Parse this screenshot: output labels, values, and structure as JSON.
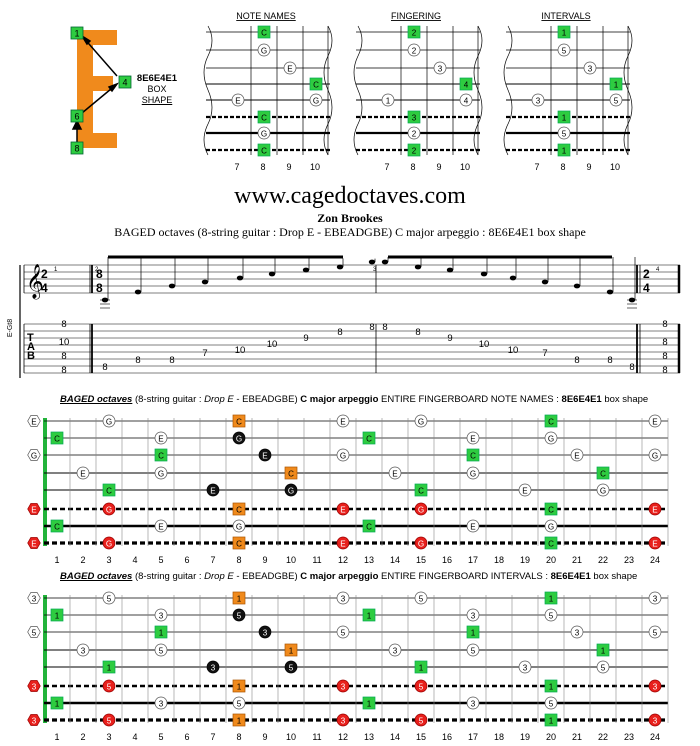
{
  "logo": {
    "letter": "E",
    "shape_code": "8E6E4E1",
    "label_line1": "BOX",
    "label_line2": "SHAPE",
    "markers": [
      "1",
      "4",
      "6",
      "8"
    ]
  },
  "mini_diagrams": [
    {
      "title": "NOTE NAMES",
      "frets": [
        "7",
        "8",
        "9",
        "10"
      ],
      "dots": [
        {
          "s": 1,
          "f": 8,
          "t": "C",
          "k": "g"
        },
        {
          "s": 2,
          "f": 8,
          "t": "G",
          "k": "w"
        },
        {
          "s": 3,
          "f": 9,
          "t": "E",
          "k": "w"
        },
        {
          "s": 4,
          "f": 10,
          "t": "C",
          "k": "g"
        },
        {
          "s": 5,
          "f": 7,
          "t": "E",
          "k": "w"
        },
        {
          "s": 5,
          "f": 10,
          "t": "G",
          "k": "w"
        },
        {
          "s": 6,
          "f": 8,
          "t": "C",
          "k": "g"
        },
        {
          "s": 7,
          "f": 8,
          "t": "G",
          "k": "w"
        },
        {
          "s": 8,
          "f": 8,
          "t": "C",
          "k": "g"
        }
      ]
    },
    {
      "title": "FINGERING",
      "frets": [
        "7",
        "8",
        "9",
        "10"
      ],
      "dots": [
        {
          "s": 1,
          "f": 8,
          "t": "2",
          "k": "g"
        },
        {
          "s": 2,
          "f": 8,
          "t": "2",
          "k": "w"
        },
        {
          "s": 3,
          "f": 9,
          "t": "3",
          "k": "w"
        },
        {
          "s": 4,
          "f": 10,
          "t": "4",
          "k": "g"
        },
        {
          "s": 5,
          "f": 7,
          "t": "1",
          "k": "w"
        },
        {
          "s": 5,
          "f": 10,
          "t": "4",
          "k": "w"
        },
        {
          "s": 6,
          "f": 8,
          "t": "3",
          "k": "g"
        },
        {
          "s": 7,
          "f": 8,
          "t": "2",
          "k": "w"
        },
        {
          "s": 8,
          "f": 8,
          "t": "2",
          "k": "g"
        }
      ]
    },
    {
      "title": "INTERVALS",
      "frets": [
        "7",
        "8",
        "9",
        "10"
      ],
      "dots": [
        {
          "s": 1,
          "f": 8,
          "t": "1",
          "k": "g"
        },
        {
          "s": 2,
          "f": 8,
          "t": "5",
          "k": "w"
        },
        {
          "s": 3,
          "f": 9,
          "t": "3",
          "k": "w"
        },
        {
          "s": 4,
          "f": 10,
          "t": "1",
          "k": "g"
        },
        {
          "s": 5,
          "f": 7,
          "t": "3",
          "k": "w"
        },
        {
          "s": 5,
          "f": 10,
          "t": "5",
          "k": "w"
        },
        {
          "s": 6,
          "f": 8,
          "t": "1",
          "k": "g"
        },
        {
          "s": 7,
          "f": 8,
          "t": "5",
          "k": "w"
        },
        {
          "s": 8,
          "f": 8,
          "t": "1",
          "k": "g"
        }
      ]
    }
  ],
  "header": {
    "site": "www.cagedoctaves.com",
    "author": "Zon Brookes",
    "subtitle": "BAGED octaves (8-string guitar : Drop E - EBEADGBE) C major arpeggio : 8E6E4E1 box shape"
  },
  "score": {
    "instrument_label": "E-Gt8",
    "tab_letters": [
      "T",
      "A",
      "B"
    ],
    "time_sig_start": [
      "2",
      "4"
    ],
    "time_sig_main": [
      "8",
      "8"
    ],
    "time_sig_end": [
      "2",
      "4"
    ],
    "measure_numbers": [
      "1",
      "2",
      "3",
      "4"
    ],
    "chord_left": [
      "8",
      "10",
      "8",
      "8"
    ],
    "chord_right": [
      "8",
      "8",
      "8",
      "8"
    ],
    "bar2_notes": [
      {
        "s": 8,
        "t": "8"
      },
      {
        "s": 7,
        "t": "8"
      },
      {
        "s": 6,
        "t": "8"
      },
      {
        "s": 5,
        "t": "7"
      },
      {
        "s": 5,
        "t": "10"
      },
      {
        "s": 4,
        "t": "10"
      },
      {
        "s": 3,
        "t": "9"
      },
      {
        "s": 2,
        "t": "8"
      },
      {
        "s": 1,
        "t": "8"
      }
    ],
    "bar3_notes": [
      {
        "s": 1,
        "t": "8"
      },
      {
        "s": 2,
        "t": "8"
      },
      {
        "s": 3,
        "t": "9"
      },
      {
        "s": 4,
        "t": "10"
      },
      {
        "s": 5,
        "t": "10"
      },
      {
        "s": 5,
        "t": "7"
      },
      {
        "s": 6,
        "t": "8"
      },
      {
        "s": 7,
        "t": "8"
      },
      {
        "s": 8,
        "t": "8"
      }
    ]
  },
  "fingerboards": [
    {
      "title": {
        "p1": "BAGED octaves",
        "p2": " (8-string guitar : ",
        "p3": "Drop E",
        "p4": " - EBEADGBE) ",
        "p5": "C major arpeggio",
        "p6": "  ENTIRE FINGERBOARD  NOTE NAMES  : ",
        "p7": "8E6E4E1",
        "p8": "  box shape"
      },
      "fret_numbers": [
        "1",
        "2",
        "3",
        "4",
        "5",
        "6",
        "7",
        "8",
        "9",
        "10",
        "11",
        "12",
        "13",
        "14",
        "15",
        "16",
        "17",
        "18",
        "19",
        "20",
        "21",
        "22",
        "23",
        "24"
      ],
      "dots": [
        {
          "s": 1,
          "f": 0,
          "t": "E",
          "k": "ow"
        },
        {
          "s": 1,
          "f": 3,
          "t": "G",
          "k": "w"
        },
        {
          "s": 1,
          "f": 8,
          "t": "C",
          "k": "o"
        },
        {
          "s": 1,
          "f": 12,
          "t": "E",
          "k": "w"
        },
        {
          "s": 1,
          "f": 15,
          "t": "G",
          "k": "w"
        },
        {
          "s": 1,
          "f": 20,
          "t": "C",
          "k": "g"
        },
        {
          "s": 1,
          "f": 24,
          "t": "E",
          "k": "w"
        },
        {
          "s": 2,
          "f": 1,
          "t": "C",
          "k": "g"
        },
        {
          "s": 2,
          "f": 5,
          "t": "E",
          "k": "w"
        },
        {
          "s": 2,
          "f": 8,
          "t": "G",
          "k": "b"
        },
        {
          "s": 2,
          "f": 13,
          "t": "C",
          "k": "g"
        },
        {
          "s": 2,
          "f": 17,
          "t": "E",
          "k": "w"
        },
        {
          "s": 2,
          "f": 20,
          "t": "G",
          "k": "w"
        },
        {
          "s": 3,
          "f": 0,
          "t": "G",
          "k": "ow"
        },
        {
          "s": 3,
          "f": 5,
          "t": "C",
          "k": "g"
        },
        {
          "s": 3,
          "f": 9,
          "t": "E",
          "k": "b"
        },
        {
          "s": 3,
          "f": 12,
          "t": "G",
          "k": "w"
        },
        {
          "s": 3,
          "f": 17,
          "t": "C",
          "k": "g"
        },
        {
          "s": 3,
          "f": 21,
          "t": "E",
          "k": "w"
        },
        {
          "s": 3,
          "f": 24,
          "t": "G",
          "k": "w"
        },
        {
          "s": 4,
          "f": 2,
          "t": "E",
          "k": "w"
        },
        {
          "s": 4,
          "f": 5,
          "t": "G",
          "k": "w"
        },
        {
          "s": 4,
          "f": 10,
          "t": "C",
          "k": "o"
        },
        {
          "s": 4,
          "f": 14,
          "t": "E",
          "k": "w"
        },
        {
          "s": 4,
          "f": 17,
          "t": "G",
          "k": "w"
        },
        {
          "s": 4,
          "f": 22,
          "t": "C",
          "k": "g"
        },
        {
          "s": 5,
          "f": 3,
          "t": "C",
          "k": "g"
        },
        {
          "s": 5,
          "f": 7,
          "t": "E",
          "k": "b"
        },
        {
          "s": 5,
          "f": 10,
          "t": "G",
          "k": "b"
        },
        {
          "s": 5,
          "f": 15,
          "t": "C",
          "k": "g"
        },
        {
          "s": 5,
          "f": 19,
          "t": "E",
          "k": "w"
        },
        {
          "s": 5,
          "f": 22,
          "t": "G",
          "k": "w"
        },
        {
          "s": 6,
          "f": 0,
          "t": "E",
          "k": "rh"
        },
        {
          "s": 6,
          "f": 3,
          "t": "G",
          "k": "r"
        },
        {
          "s": 6,
          "f": 8,
          "t": "C",
          "k": "o"
        },
        {
          "s": 6,
          "f": 12,
          "t": "E",
          "k": "r"
        },
        {
          "s": 6,
          "f": 15,
          "t": "G",
          "k": "r"
        },
        {
          "s": 6,
          "f": 20,
          "t": "C",
          "k": "g"
        },
        {
          "s": 6,
          "f": 24,
          "t": "E",
          "k": "r"
        },
        {
          "s": 7,
          "f": 1,
          "t": "C",
          "k": "g"
        },
        {
          "s": 7,
          "f": 5,
          "t": "E",
          "k": "w"
        },
        {
          "s": 7,
          "f": 8,
          "t": "G",
          "k": "w"
        },
        {
          "s": 7,
          "f": 13,
          "t": "C",
          "k": "g"
        },
        {
          "s": 7,
          "f": 17,
          "t": "E",
          "k": "w"
        },
        {
          "s": 7,
          "f": 20,
          "t": "G",
          "k": "w"
        },
        {
          "s": 8,
          "f": 0,
          "t": "E",
          "k": "rh"
        },
        {
          "s": 8,
          "f": 3,
          "t": "G",
          "k": "r"
        },
        {
          "s": 8,
          "f": 8,
          "t": "C",
          "k": "o"
        },
        {
          "s": 8,
          "f": 12,
          "t": "E",
          "k": "r"
        },
        {
          "s": 8,
          "f": 15,
          "t": "G",
          "k": "r"
        },
        {
          "s": 8,
          "f": 20,
          "t": "C",
          "k": "g"
        },
        {
          "s": 8,
          "f": 24,
          "t": "E",
          "k": "r"
        }
      ]
    },
    {
      "title": {
        "p1": "BAGED octaves",
        "p2": " (8-string guitar : ",
        "p3": "Drop E",
        "p4": " - EBEADGBE) ",
        "p5": "C major arpeggio",
        "p6": "  ENTIRE FINGERBOARD  INTERVALS  : ",
        "p7": "8E6E4E1",
        "p8": "  box shape"
      },
      "fret_numbers": [
        "1",
        "2",
        "3",
        "4",
        "5",
        "6",
        "7",
        "8",
        "9",
        "10",
        "11",
        "12",
        "13",
        "14",
        "15",
        "16",
        "17",
        "18",
        "19",
        "20",
        "21",
        "22",
        "23",
        "24"
      ],
      "dots": [
        {
          "s": 1,
          "f": 0,
          "t": "3",
          "k": "ow"
        },
        {
          "s": 1,
          "f": 3,
          "t": "5",
          "k": "w"
        },
        {
          "s": 1,
          "f": 8,
          "t": "1",
          "k": "o"
        },
        {
          "s": 1,
          "f": 12,
          "t": "3",
          "k": "w"
        },
        {
          "s": 1,
          "f": 15,
          "t": "5",
          "k": "w"
        },
        {
          "s": 1,
          "f": 20,
          "t": "1",
          "k": "g"
        },
        {
          "s": 1,
          "f": 24,
          "t": "3",
          "k": "w"
        },
        {
          "s": 2,
          "f": 1,
          "t": "1",
          "k": "g"
        },
        {
          "s": 2,
          "f": 5,
          "t": "3",
          "k": "w"
        },
        {
          "s": 2,
          "f": 8,
          "t": "5",
          "k": "b"
        },
        {
          "s": 2,
          "f": 13,
          "t": "1",
          "k": "g"
        },
        {
          "s": 2,
          "f": 17,
          "t": "3",
          "k": "w"
        },
        {
          "s": 2,
          "f": 20,
          "t": "5",
          "k": "w"
        },
        {
          "s": 3,
          "f": 0,
          "t": "5",
          "k": "ow"
        },
        {
          "s": 3,
          "f": 5,
          "t": "1",
          "k": "g"
        },
        {
          "s": 3,
          "f": 9,
          "t": "3",
          "k": "b"
        },
        {
          "s": 3,
          "f": 12,
          "t": "5",
          "k": "w"
        },
        {
          "s": 3,
          "f": 17,
          "t": "1",
          "k": "g"
        },
        {
          "s": 3,
          "f": 21,
          "t": "3",
          "k": "w"
        },
        {
          "s": 3,
          "f": 24,
          "t": "5",
          "k": "w"
        },
        {
          "s": 4,
          "f": 2,
          "t": "3",
          "k": "w"
        },
        {
          "s": 4,
          "f": 5,
          "t": "5",
          "k": "w"
        },
        {
          "s": 4,
          "f": 10,
          "t": "1",
          "k": "o"
        },
        {
          "s": 4,
          "f": 14,
          "t": "3",
          "k": "w"
        },
        {
          "s": 4,
          "f": 17,
          "t": "5",
          "k": "w"
        },
        {
          "s": 4,
          "f": 22,
          "t": "1",
          "k": "g"
        },
        {
          "s": 5,
          "f": 3,
          "t": "1",
          "k": "g"
        },
        {
          "s": 5,
          "f": 7,
          "t": "3",
          "k": "b"
        },
        {
          "s": 5,
          "f": 10,
          "t": "5",
          "k": "b"
        },
        {
          "s": 5,
          "f": 15,
          "t": "1",
          "k": "g"
        },
        {
          "s": 5,
          "f": 19,
          "t": "3",
          "k": "w"
        },
        {
          "s": 5,
          "f": 22,
          "t": "5",
          "k": "w"
        },
        {
          "s": 6,
          "f": 0,
          "t": "3",
          "k": "rh"
        },
        {
          "s": 6,
          "f": 3,
          "t": "5",
          "k": "r"
        },
        {
          "s": 6,
          "f": 8,
          "t": "1",
          "k": "o"
        },
        {
          "s": 6,
          "f": 12,
          "t": "3",
          "k": "r"
        },
        {
          "s": 6,
          "f": 15,
          "t": "5",
          "k": "r"
        },
        {
          "s": 6,
          "f": 20,
          "t": "1",
          "k": "g"
        },
        {
          "s": 6,
          "f": 24,
          "t": "3",
          "k": "r"
        },
        {
          "s": 7,
          "f": 1,
          "t": "1",
          "k": "g"
        },
        {
          "s": 7,
          "f": 5,
          "t": "3",
          "k": "w"
        },
        {
          "s": 7,
          "f": 8,
          "t": "5",
          "k": "w"
        },
        {
          "s": 7,
          "f": 13,
          "t": "1",
          "k": "g"
        },
        {
          "s": 7,
          "f": 17,
          "t": "3",
          "k": "w"
        },
        {
          "s": 7,
          "f": 20,
          "t": "5",
          "k": "w"
        },
        {
          "s": 8,
          "f": 0,
          "t": "3",
          "k": "rh"
        },
        {
          "s": 8,
          "f": 3,
          "t": "5",
          "k": "r"
        },
        {
          "s": 8,
          "f": 8,
          "t": "1",
          "k": "o"
        },
        {
          "s": 8,
          "f": 12,
          "t": "3",
          "k": "r"
        },
        {
          "s": 8,
          "f": 15,
          "t": "5",
          "k": "r"
        },
        {
          "s": 8,
          "f": 20,
          "t": "1",
          "k": "g"
        },
        {
          "s": 8,
          "f": 24,
          "t": "3",
          "k": "r"
        }
      ]
    }
  ],
  "colors": {
    "green": "#2ecc40",
    "orange": "#f08a1c",
    "red": "#e8201c",
    "black": "#111111",
    "nut_green": "#22b33a"
  }
}
